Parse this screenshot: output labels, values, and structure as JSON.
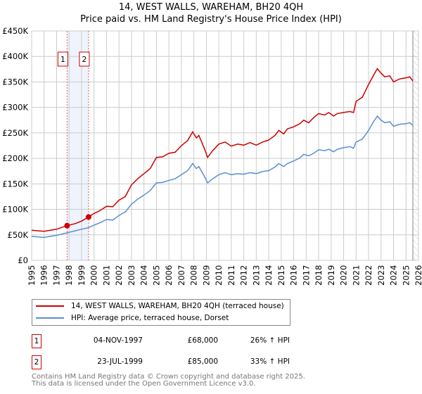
{
  "chart_data": {
    "type": "line",
    "title": "14, WEST WALLS, WAREHAM, BH20 4QH",
    "subtitle": "Price paid vs. HM Land Registry's House Price Index (HPI)",
    "xlim": [
      1995,
      2026
    ],
    "ylim": [
      0,
      450000
    ],
    "x_ticks": [
      "1995",
      "1996",
      "1997",
      "1998",
      "1999",
      "2000",
      "2001",
      "2002",
      "2003",
      "2004",
      "2005",
      "2006",
      "2007",
      "2008",
      "2009",
      "2010",
      "2011",
      "2012",
      "2013",
      "2014",
      "2015",
      "2016",
      "2017",
      "2018",
      "2019",
      "2020",
      "2021",
      "2022",
      "2023",
      "2024",
      "2025",
      "2026"
    ],
    "y_ticks": [
      {
        "v": 0,
        "label": "£0"
      },
      {
        "v": 50000,
        "label": "£50K"
      },
      {
        "v": 100000,
        "label": "£100K"
      },
      {
        "v": 150000,
        "label": "£150K"
      },
      {
        "v": 200000,
        "label": "£200K"
      },
      {
        "v": 250000,
        "label": "£250K"
      },
      {
        "v": 300000,
        "label": "£300K"
      },
      {
        "v": 350000,
        "label": "£350K"
      },
      {
        "v": 400000,
        "label": "£400K"
      },
      {
        "v": 450000,
        "label": "£450K"
      }
    ],
    "grid": true,
    "data_end": 2025.55,
    "series": [
      {
        "name": "14, WEST WALLS, WAREHAM, BH20 4QH (terraced house)",
        "color": "#cc0000",
        "x": [
          1995,
          1996,
          1997,
          1997.84,
          1998.5,
          1999,
          1999.56,
          2000,
          2000.5,
          2001,
          2001.5,
          2002,
          2002.5,
          2003,
          2003.5,
          2004,
          2004.5,
          2005,
          2005.5,
          2006,
          2006.5,
          2007,
          2007.5,
          2007.9,
          2008.2,
          2008.4,
          2008.8,
          2009.1,
          2009.5,
          2010,
          2010.5,
          2011,
          2011.5,
          2012,
          2012.5,
          2013,
          2013.5,
          2014,
          2014.5,
          2014.8,
          2015.2,
          2015.5,
          2016,
          2016.5,
          2016.8,
          2017.2,
          2017.6,
          2018,
          2018.5,
          2018.8,
          2019.2,
          2019.5,
          2020,
          2020.5,
          2020.8,
          2021,
          2021.5,
          2022,
          2022.4,
          2022.7,
          2023,
          2023.3,
          2023.7,
          2024,
          2024.5,
          2025,
          2025.3,
          2025.55
        ],
        "y": [
          59000,
          57000,
          61000,
          68000,
          72000,
          77000,
          85000,
          92000,
          98000,
          106000,
          105000,
          118000,
          125000,
          148000,
          160000,
          170000,
          180000,
          202000,
          203000,
          210000,
          212000,
          225000,
          235000,
          252000,
          240000,
          245000,
          222000,
          202000,
          215000,
          228000,
          232000,
          224000,
          228000,
          226000,
          231000,
          226000,
          232000,
          236000,
          245000,
          255000,
          248000,
          258000,
          262000,
          268000,
          275000,
          270000,
          280000,
          288000,
          285000,
          290000,
          283000,
          288000,
          290000,
          292000,
          290000,
          312000,
          320000,
          345000,
          363000,
          376000,
          367000,
          360000,
          362000,
          350000,
          356000,
          358000,
          360000,
          352000
        ]
      },
      {
        "name": "HPI: Average price, terraced house, Dorset",
        "color": "#5b8fd0",
        "x": [
          1995,
          1996,
          1997,
          1997.84,
          1998.5,
          1999,
          1999.56,
          2000,
          2000.5,
          2001,
          2001.5,
          2002,
          2002.5,
          2003,
          2003.5,
          2004,
          2004.5,
          2005,
          2005.5,
          2006,
          2006.5,
          2007,
          2007.5,
          2007.9,
          2008.2,
          2008.4,
          2008.8,
          2009.1,
          2009.5,
          2010,
          2010.5,
          2011,
          2011.5,
          2012,
          2012.5,
          2013,
          2013.5,
          2014,
          2014.5,
          2014.8,
          2015.2,
          2015.5,
          2016,
          2016.5,
          2016.8,
          2017.2,
          2017.6,
          2018,
          2018.5,
          2018.8,
          2019.2,
          2019.5,
          2020,
          2020.5,
          2020.8,
          2021,
          2021.5,
          2022,
          2022.4,
          2022.7,
          2023,
          2023.3,
          2023.7,
          2024,
          2024.5,
          2025,
          2025.3,
          2025.55
        ],
        "y": [
          47000,
          45000,
          49000,
          54000,
          58000,
          61000,
          64000,
          69000,
          74000,
          80000,
          79000,
          88000,
          95000,
          110000,
          120000,
          128000,
          137000,
          152000,
          153000,
          157000,
          160000,
          168000,
          176000,
          190000,
          180000,
          184000,
          167000,
          152000,
          160000,
          168000,
          172000,
          168000,
          170000,
          169000,
          172000,
          170000,
          174000,
          176000,
          183000,
          190000,
          184000,
          190000,
          195000,
          201000,
          208000,
          205000,
          210000,
          217000,
          215000,
          218000,
          213000,
          218000,
          221000,
          223000,
          220000,
          232000,
          238000,
          255000,
          272000,
          283000,
          275000,
          270000,
          272000,
          263000,
          267000,
          268000,
          270000,
          265000
        ]
      }
    ],
    "sales": [
      {
        "id": "1",
        "x": 1997.84,
        "price": 68000,
        "date": "04-NOV-1997",
        "price_label": "£68,000",
        "hpi_change": "26% ↑ HPI"
      },
      {
        "id": "2",
        "x": 1999.56,
        "price": 85000,
        "date": "23-JUL-1999",
        "price_label": "£85,000",
        "hpi_change": "33% ↑ HPI"
      }
    ],
    "legend_placement": "below"
  },
  "footer": {
    "line1": "Contains HM Land Registry data © Crown copyright and database right 2025.",
    "line2": "This data is licensed under the Open Government Licence v3.0."
  }
}
